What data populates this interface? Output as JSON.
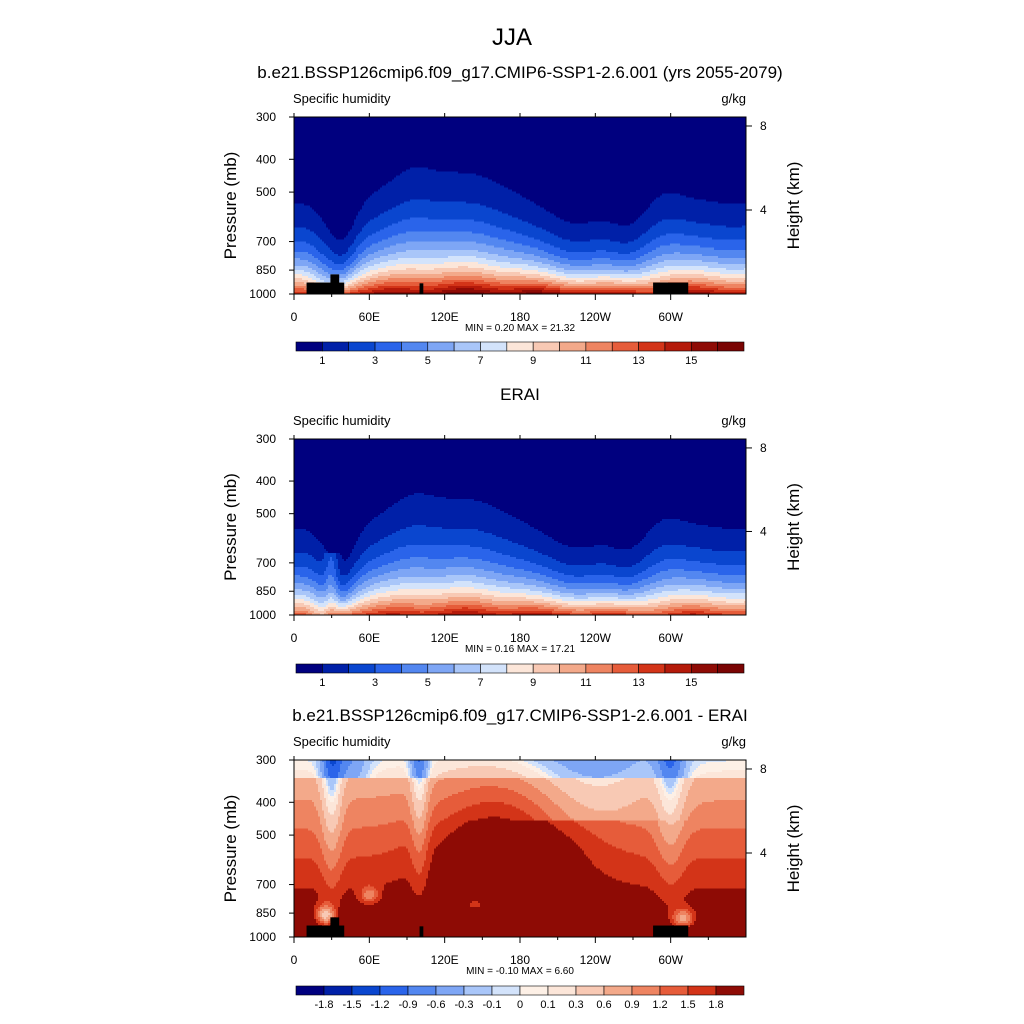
{
  "title": "JJA",
  "panels": [
    {
      "title": "b.e21.BSSP126cmip6.f09_g17.CMIP6-SSP1-2.6.001 (yrs 2055-2079)",
      "left_label": "Specific humidity",
      "right_label": "g/kg",
      "minmax": "MIN =   0.20  MAX =  21.32"
    },
    {
      "title": "ERAI",
      "left_label": "Specific humidity",
      "right_label": "g/kg",
      "minmax": "MIN =   0.16  MAX =  17.21"
    },
    {
      "title": "b.e21.BSSP126cmip6.f09_g17.CMIP6-SSP1-2.6.001 - ERAI",
      "left_label": "Specific humidity",
      "right_label": "g/kg",
      "minmax": "MIN =  -0.10  MAX =   6.60"
    }
  ],
  "chart_data": [
    {
      "type": "heatmap",
      "title": "b.e21.BSSP126cmip6.f09_g17.CMIP6-SSP1-2.6.001 (yrs 2055-2079)",
      "field": "model",
      "ylabel": "Pressure (mb)",
      "y2label": "Height (km)",
      "x_ticks": [
        "0",
        "60E",
        "120E",
        "180",
        "120W",
        "60W"
      ],
      "y_ticks": [
        "300",
        "400",
        "500",
        "700",
        "850",
        "1000"
      ],
      "y2_ticks": [
        "8",
        "4"
      ],
      "xlim": [
        0,
        360
      ],
      "ylim": [
        1000,
        300
      ],
      "colorbar_labels": [
        "1",
        "3",
        "5",
        "7",
        "9",
        "11",
        "13",
        "15"
      ],
      "colors": [
        "#00007f",
        "#0020a8",
        "#0a46cf",
        "#2a64ea",
        "#5387f0",
        "#7ea6f5",
        "#a9c6f9",
        "#d3e3fb",
        "#fce6d9",
        "#f8c9b4",
        "#f3a98a",
        "#ee8461",
        "#e65c3a",
        "#d33418",
        "#b41a0a",
        "#8e0b05",
        "#7a0403"
      ],
      "values": "specific humidity field estimated from image; moist near surface (about 15-17 g/kg), dry aloft (about 1 g/kg)"
    },
    {
      "type": "heatmap",
      "title": "ERAI",
      "field": "obs",
      "ylabel": "Pressure (mb)",
      "y2label": "Height (km)",
      "x_ticks": [
        "0",
        "60E",
        "120E",
        "180",
        "120W",
        "60W"
      ],
      "y_ticks": [
        "300",
        "400",
        "500",
        "700",
        "850",
        "1000"
      ],
      "y2_ticks": [
        "8",
        "4"
      ],
      "xlim": [
        0,
        360
      ],
      "ylim": [
        1000,
        300
      ],
      "colorbar_labels": [
        "1",
        "3",
        "5",
        "7",
        "9",
        "11",
        "13",
        "15"
      ],
      "colors": [
        "#00007f",
        "#0020a8",
        "#0a46cf",
        "#2a64ea",
        "#5387f0",
        "#7ea6f5",
        "#a9c6f9",
        "#d3e3fb",
        "#fce6d9",
        "#f8c9b4",
        "#f3a98a",
        "#ee8461",
        "#e65c3a",
        "#d33418",
        "#b41a0a",
        "#8e0b05",
        "#7a0403"
      ],
      "values": "specific humidity field estimated from image; similar to model but slightly drier"
    },
    {
      "type": "heatmap",
      "title": "b.e21.BSSP126cmip6.f09_g17.CMIP6-SSP1-2.6.001 - ERAI",
      "field": "diff",
      "ylabel": "Pressure (mb)",
      "y2label": "Height (km)",
      "x_ticks": [
        "0",
        "60E",
        "120E",
        "180",
        "120W",
        "60W"
      ],
      "y_ticks": [
        "300",
        "400",
        "500",
        "700",
        "850",
        "1000"
      ],
      "y2_ticks": [
        "8",
        "4"
      ],
      "xlim": [
        0,
        360
      ],
      "ylim": [
        1000,
        300
      ],
      "colorbar_labels": [
        "-1.8",
        "-1.5",
        "-1.2",
        "-0.9",
        "-0.6",
        "-0.3",
        "-0.1",
        "0",
        "0.1",
        "0.3",
        "0.6",
        "0.9",
        "1.2",
        "1.5",
        "1.8"
      ],
      "colors": [
        "#00007f",
        "#0020a8",
        "#0a46cf",
        "#2a64ea",
        "#5387f0",
        "#7ea6f5",
        "#a9c6f9",
        "#d3e3fb",
        "#fdf0e6",
        "#fce6d9",
        "#f8c9b4",
        "#f3a98a",
        "#ee8461",
        "#e65c3a",
        "#d33418",
        "#8e0b05"
      ],
      "values": "difference field estimated from image; mostly positive (about 0.1 to >1.8 g/kg), largest near surface"
    }
  ]
}
